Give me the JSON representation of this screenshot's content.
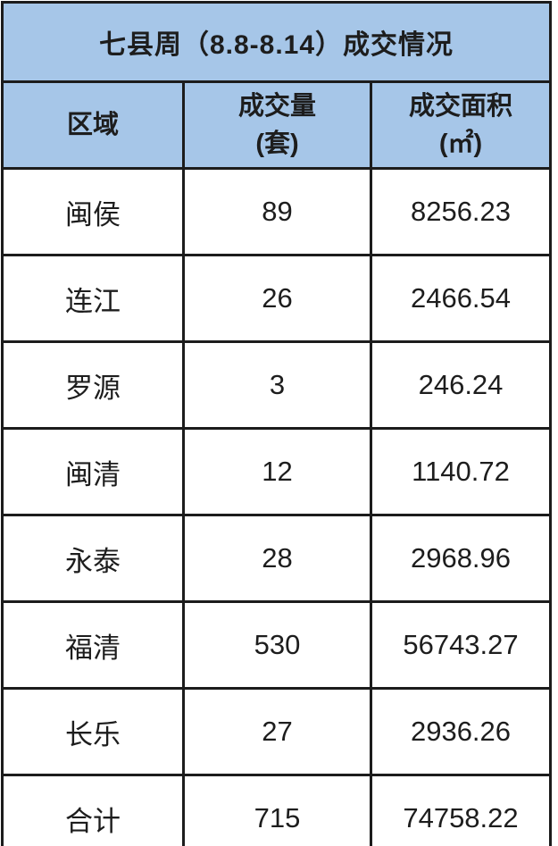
{
  "table": {
    "title": "七县周（8.8-8.14）成交情况",
    "header": {
      "region_label": "区域",
      "volume_label": "成交量",
      "volume_unit": "(套)",
      "area_label": "成交面积",
      "area_unit": "(㎡)"
    },
    "rows": [
      {
        "region": "闽侯",
        "volume": "89",
        "area": "8256.23"
      },
      {
        "region": "连江",
        "volume": "26",
        "area": "2466.54"
      },
      {
        "region": "罗源",
        "volume": "3",
        "area": "246.24"
      },
      {
        "region": "闽清",
        "volume": "12",
        "area": "1140.72"
      },
      {
        "region": "永泰",
        "volume": "28",
        "area": "2968.96"
      },
      {
        "region": "福清",
        "volume": "530",
        "area": "56743.27"
      },
      {
        "region": "长乐",
        "volume": "27",
        "area": "2936.26"
      },
      {
        "region": "合计",
        "volume": "715",
        "area": "74758.22"
      }
    ],
    "colors": {
      "header_bg": "#a6c6e8",
      "border": "#1c1c1c",
      "text": "#1d1d1d"
    }
  }
}
